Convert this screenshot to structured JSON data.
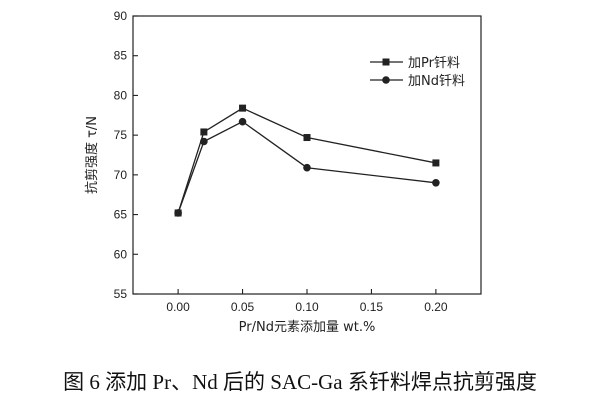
{
  "chart_data": {
    "type": "line",
    "x": [
      0.0,
      0.02,
      0.05,
      0.1,
      0.2
    ],
    "series": [
      {
        "name": "加Pr钎料",
        "marker": "square",
        "values": [
          65.2,
          75.4,
          78.4,
          74.7,
          71.5
        ]
      },
      {
        "name": "加Nd钎料",
        "marker": "circle",
        "values": [
          65.2,
          74.2,
          76.7,
          70.9,
          69.0
        ]
      }
    ],
    "xlabel": "Pr/Nd元素添加量 wt.%",
    "ylabel": "抗剪强度 τ/N",
    "xlim": [
      -0.035,
      0.235
    ],
    "ylim": [
      55,
      90
    ],
    "xticks": [
      "0.00",
      "0.05",
      "0.10",
      "0.15",
      "0.20"
    ],
    "yticks": [
      "55",
      "60",
      "65",
      "70",
      "75",
      "80",
      "85",
      "90"
    ],
    "legend_position": "top-right",
    "grid": false
  },
  "caption": "图 6 添加 Pr、Nd 后的 SAC-Ga 系钎料焊点抗剪强度",
  "colors": {
    "line": "#222222",
    "axis": "#222222",
    "background": "#ffffff"
  }
}
